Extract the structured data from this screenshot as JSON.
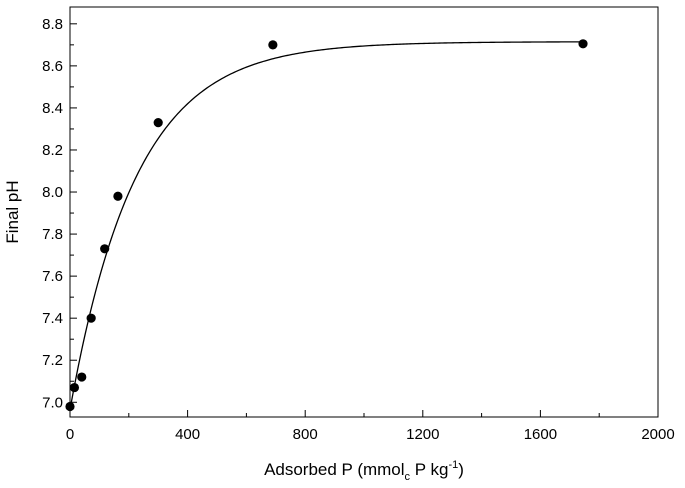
{
  "chart_data": {
    "type": "scatter",
    "title": "",
    "xlabel": {
      "text": "Adsorbed P (mmol",
      "sub": "c",
      "mid": " P kg",
      "sup": "-1",
      "end": ")"
    },
    "ylabel": "Final pH",
    "xlim": [
      0,
      2000
    ],
    "ylim": [
      6.93,
      8.88
    ],
    "xticks": [
      0,
      400,
      800,
      1200,
      1600,
      2000
    ],
    "yticks": [
      7.0,
      7.2,
      7.4,
      7.6,
      7.8,
      8.0,
      8.2,
      8.4,
      8.6,
      8.8
    ],
    "xtick_labels": [
      "0",
      "400",
      "800",
      "1200",
      "1600",
      "2000"
    ],
    "ytick_labels": [
      "7.0",
      "7.2",
      "7.4",
      "7.6",
      "7.8",
      "8.0",
      "8.2",
      "8.4",
      "8.6",
      "8.8"
    ],
    "grid": false,
    "legend": false,
    "series": [
      {
        "kind": "points",
        "x": [
          0,
          15,
          40,
          72,
          118,
          163,
          300,
          690,
          1745
        ],
        "y": [
          6.98,
          7.07,
          7.12,
          7.4,
          7.73,
          7.98,
          8.33,
          8.7,
          8.705
        ]
      },
      {
        "kind": "fit-curve",
        "model": "exponential-rise",
        "y0": 6.965,
        "plateau": 8.715,
        "rate": 0.00445,
        "x_range": [
          0,
          1745
        ]
      }
    ]
  }
}
